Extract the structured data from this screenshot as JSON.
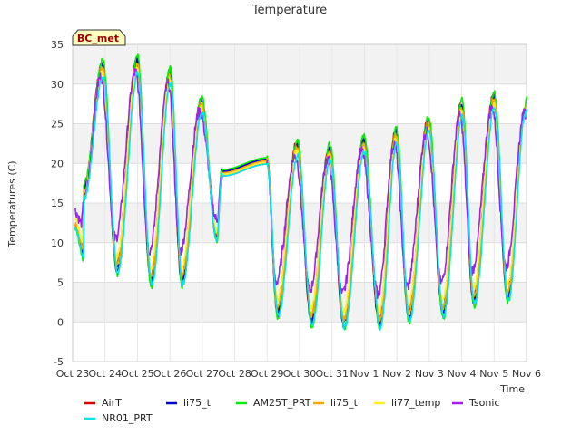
{
  "chart_data": {
    "type": "line",
    "title": "Temperature",
    "xlabel": "Time",
    "ylabel": "Temperatures (C)",
    "badge": "BC_met",
    "ylim": [
      -5,
      35
    ],
    "yticks": [
      -5,
      0,
      5,
      10,
      15,
      20,
      25,
      30,
      35
    ],
    "xlim": [
      0,
      14
    ],
    "xticks": [
      {
        "x": 0,
        "label": "Oct 23"
      },
      {
        "x": 1,
        "label": "Oct 24"
      },
      {
        "x": 2,
        "label": "Oct 25"
      },
      {
        "x": 3,
        "label": "Oct 26"
      },
      {
        "x": 4,
        "label": "Oct 27"
      },
      {
        "x": 5,
        "label": "Oct 28"
      },
      {
        "x": 6,
        "label": "Oct 29"
      },
      {
        "x": 7,
        "label": "Oct 30"
      },
      {
        "x": 8,
        "label": "Oct 31"
      },
      {
        "x": 9,
        "label": "Nov 1"
      },
      {
        "x": 10,
        "label": "Nov 2"
      },
      {
        "x": 11,
        "label": "Nov 3"
      },
      {
        "x": 12,
        "label": "Nov 4"
      },
      {
        "x": 13,
        "label": "Nov 5"
      },
      {
        "x": 14,
        "label": "Nov 6"
      }
    ],
    "grid": true,
    "legend_position": "bottom",
    "daily_extremes": [
      {
        "max": 17,
        "min": 11,
        "tmin": 0.05,
        "tmax": 0.0
      },
      {
        "max": 32.5,
        "min": 8.5,
        "tmin": 0.3,
        "tmax": 0.9
      },
      {
        "max": 33,
        "min": 6.5,
        "tmin": 1.35,
        "tmax": 1.97
      },
      {
        "max": 31.5,
        "min": 5,
        "tmin": 2.4,
        "tmax": 2.98
      },
      {
        "max": 28,
        "min": 5,
        "tmin": 3.35,
        "tmax": 3.95
      },
      {
        "max": 20,
        "min": 9,
        "tmin": 4.35,
        "tmax": 4.55
      },
      {
        "max": 22.5,
        "min": 1,
        "tmin": 6.3,
        "tmax": 6.9
      },
      {
        "max": 22,
        "min": 0,
        "tmin": 7.35,
        "tmax": 7.9
      },
      {
        "max": 23,
        "min": -0.5,
        "tmin": 8.35,
        "tmax": 8.95
      },
      {
        "max": 24,
        "min": -0.5,
        "tmin": 9.45,
        "tmax": 9.95
      },
      {
        "max": 25.5,
        "min": 0.5,
        "tmin": 10.35,
        "tmax": 10.95
      },
      {
        "max": 27.5,
        "min": 1,
        "tmin": 11.4,
        "tmax": 11.98
      },
      {
        "max": 28.5,
        "min": 2.5,
        "tmin": 12.35,
        "tmax": 12.97
      },
      {
        "max": 28,
        "min": 3,
        "tmin": 13.4,
        "tmax": 13.98
      }
    ],
    "series": [
      {
        "name": "AirT",
        "color": "#dd0000",
        "offset": 0.0,
        "minOffset": 0.5,
        "lag": 0.0,
        "seed": 1
      },
      {
        "name": "li75_t",
        "color": "#0000cc",
        "offset": 0.0,
        "minOffset": 0.0,
        "lag": 0.02,
        "seed": 2
      },
      {
        "name": "AM25T_PRT",
        "color": "#00ee00",
        "offset": 0.5,
        "minOffset": -0.5,
        "lag": 0.03,
        "seed": 3
      },
      {
        "name": "li75_t",
        "color": "#ffa500",
        "offset": -0.5,
        "minOffset": 0.8,
        "lag": 0.02,
        "seed": 4
      },
      {
        "name": "li77_temp",
        "color": "#ffee22",
        "offset": -1.0,
        "minOffset": 1.8,
        "lag": 0.01,
        "seed": 5
      },
      {
        "name": "Tsonic",
        "color": "#a020f0",
        "offset": -1.5,
        "minOffset": 4.0,
        "lag": -0.03,
        "seed": 6
      },
      {
        "name": "NR01_PRT",
        "color": "#00e5ee",
        "offset": -1.5,
        "minOffset": -0.2,
        "lag": 0.04,
        "seed": 7
      }
    ]
  }
}
